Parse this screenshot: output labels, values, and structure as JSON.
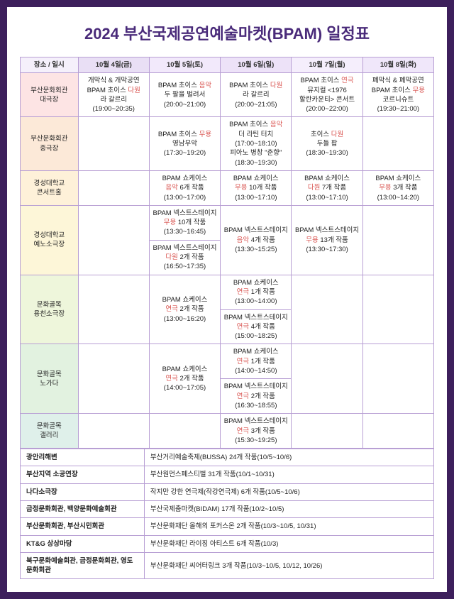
{
  "title": "2024 부산국제공연예술마켓(BPAM) 일정표",
  "header": {
    "corner": "장소 / 일시",
    "days": [
      "10월 4일(금)",
      "10월 5일(토)",
      "10월 6일(일)",
      "10월 7일(월)",
      "10월 8일(화)"
    ]
  },
  "venues": [
    "부산문화회관\n대극장",
    "부산문화회관\n중극장",
    "경성대학교\n콘서트홀",
    "경성대학교\n예노소극장",
    "문화골목\n용천소극장",
    "문화골목\n노가다",
    "문화골목\n갤러리"
  ],
  "cells": {
    "v0d0": {
      "pre": "개막식 & 개막공연\nBPAM 초이스 ",
      "cat": "다원",
      "post": "\n라 갈르리\n(19:00~20:35)"
    },
    "v0d1": {
      "pre": "BPAM 초이스 ",
      "cat": "음악",
      "post": "\n두 팔을 벌려서\n(20:00~21:00)"
    },
    "v0d2": {
      "pre": "BPAM 초이스 ",
      "cat": "다원",
      "post": "\n라 갈르리\n(20:00~21:05)"
    },
    "v0d3": {
      "pre": "BPAM 초이스 ",
      "cat": "연극",
      "post": "\n뮤지컬 <1976\n할란카운티> 콘서트\n(20:00~22:00)"
    },
    "v0d4": {
      "pre": "폐막식 & 폐막공연\nBPAM 초이스 ",
      "cat": "무용",
      "post": "\n코르니슈트\n(19:30~21:00)"
    },
    "v1d1": {
      "pre": "BPAM 초이스 ",
      "cat": "무용",
      "post": "\n영남무악\n(17:30~19:20)"
    },
    "v1d2": {
      "pre": "BPAM 초이스 ",
      "cat": "음악",
      "post": "\n더 라틴 터치\n(17:00~18:10)\n피아노 병창 \"춘향\"\n(18:30~19:30)"
    },
    "v1d3": {
      "pre": "초이스 ",
      "cat": "다원",
      "post": "\n두들 팝\n(18:30~19:30)"
    },
    "v2d1": {
      "pre": "BPAM 쇼케이스\n",
      "cat": "음악",
      "post": " 6개 작품\n(13:00~17:00)"
    },
    "v2d2": {
      "pre": "BPAM 쇼케이스\n",
      "cat": "무용",
      "post": " 10개 작품\n(13:00~17:10)"
    },
    "v2d3": {
      "pre": "BPAM 쇼케이스\n",
      "cat": "다원",
      "post": " 7개 작품\n(13:00~17:10)"
    },
    "v2d4": {
      "pre": "BPAM 쇼케이스\n",
      "cat": "무용",
      "post": " 3개 작품\n(13:00~14:20)"
    },
    "v3d1a": {
      "pre": "BPAM 넥스트스테이지\n",
      "cat": "무용",
      "post": " 10개 작품\n(13:30~16:45)"
    },
    "v3d1b": {
      "pre": "BPAM 넥스트스테이지\n",
      "cat": "다원",
      "post": " 2개 작품\n(16:50~17:35)"
    },
    "v3d2": {
      "pre": "BPAM 넥스트스테이지\n",
      "cat": "음악",
      "post": " 4개 작품\n(13:30~15:25)"
    },
    "v3d3": {
      "pre": "BPAM 넥스트스테이지\n",
      "cat": "무용",
      "post": " 13개 작품\n(13:30~17:30)"
    },
    "v4d1": {
      "pre": "BPAM 쇼케이스\n",
      "cat": "연극",
      "post": " 2개 작품\n(13:00~16:20)"
    },
    "v4d2a": {
      "pre": "BPAM 쇼케이스\n",
      "cat": "연극",
      "post": " 1개 작품\n(13:00~14:00)"
    },
    "v4d2b": {
      "pre": "BPAM 넥스트스테이지\n",
      "cat": "연극",
      "post": " 4개 작품\n(15:00~18:25)"
    },
    "v5d1": {
      "pre": "BPAM 쇼케이스\n",
      "cat": "연극",
      "post": " 2개 작품\n(14:00~17:05)"
    },
    "v5d2a": {
      "pre": "BPAM 쇼케이스\n",
      "cat": "연극",
      "post": " 1개 작품\n(14:00~14:50)"
    },
    "v5d2b": {
      "pre": "BPAM 넥스트스테이지\n",
      "cat": "연극",
      "post": " 2개 작품\n(16:30~18:55)"
    },
    "v6d2": {
      "pre": "BPAM 넥스트스테이지\n",
      "cat": "연극",
      "post": " 3개 작품\n(15:30~19:25)"
    }
  },
  "bottom": [
    {
      "label": "광안리해변",
      "value": "부산거리예술축제(BUSSA) 24개 작품(10/5~10/6)"
    },
    {
      "label": "부산지역 소공연장",
      "value": "부산원먼스페스티벌 31개 작품(10/1~10/31)"
    },
    {
      "label": "나다소극장",
      "value": "작지만 강한 연극제(작강연극제) 6개 작품(10/5~10/6)"
    },
    {
      "label": "금정문화회관, 백양문화예술회관",
      "value": "부산국제춤마켓(BIDAM) 17개 작품(10/2~10/5)"
    },
    {
      "label": "부산문화회관, 부산시민회관",
      "value": "부산문화재단 올해의 포커스온 2개 작품(10/3~10/5, 10/31)"
    },
    {
      "label": "KT&G 상상마당",
      "value": "부산문화재단 라이징 아티스트 6개 작품(10/3)"
    },
    {
      "label": "북구문화예술회관, 금정문화회관, 영도문화회관",
      "value": "부산문화재단 씨어터링크 3개 작품(10/3~10/5, 10/12, 10/26)"
    }
  ],
  "colors": {
    "border": "#b89fd4",
    "title": "#4a2b7a",
    "accent": "#d9534f"
  }
}
